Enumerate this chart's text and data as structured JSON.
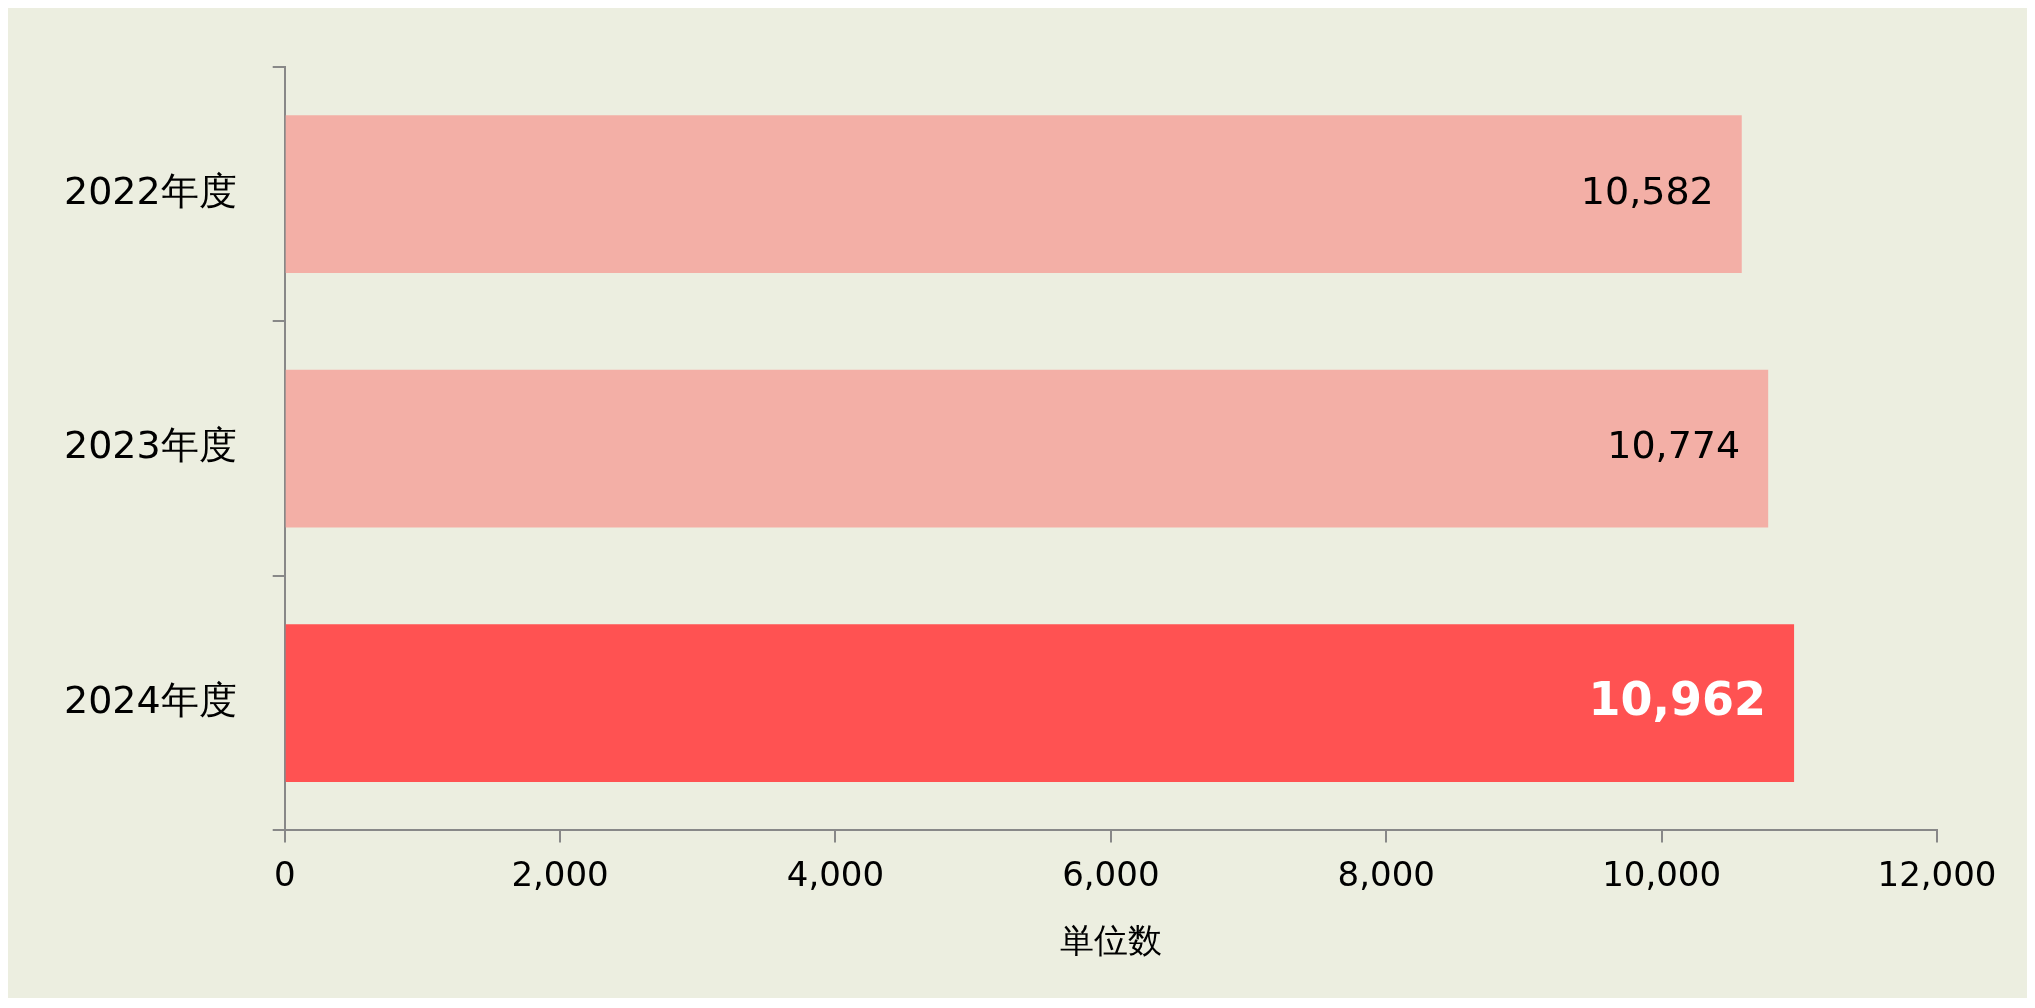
{
  "chart_data": {
    "type": "bar",
    "orientation": "horizontal",
    "xlabel": "単位数",
    "categories": [
      "2022年度",
      "2023年度",
      "2024年度"
    ],
    "values": [
      10582,
      10774,
      10962
    ],
    "value_labels": [
      "10,582",
      "10,774",
      "10,962"
    ],
    "colors": [
      "#f3afa6",
      "#f3afa6",
      "#ff5252"
    ],
    "xlim": [
      0,
      12000
    ],
    "xticks": [
      0,
      {
        "value": 2000,
        "label": "2,000"
      },
      {
        "value": 4000,
        "label": "4,000"
      },
      {
        "value": 6000,
        "label": "6,000"
      },
      {
        "value": 8000,
        "label": "8,000"
      },
      {
        "value": 10000,
        "label": "10,000"
      },
      {
        "value": 12000,
        "label": "12,000"
      }
    ],
    "grid": false,
    "legend": false
  }
}
